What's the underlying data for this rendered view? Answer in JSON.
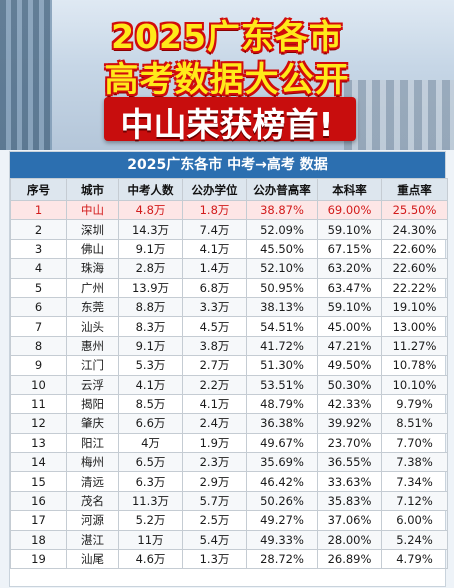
{
  "hero": {
    "title_line1": "2025广东各市",
    "title_line2": "高考数据大公开",
    "title_line3": "中山荣获榜首!"
  },
  "table": {
    "title": "2025广东各市 中考→高考 数据",
    "headers": [
      "序号",
      "城市",
      "中考人数",
      "公办学位",
      "公办普高率",
      "本科率",
      "重点率"
    ],
    "highlight_color": "#d21b1b",
    "header_color": "#2c6fb0",
    "rows": [
      [
        "1",
        "中山",
        "4.8万",
        "1.8万",
        "38.87%",
        "69.00%",
        "25.50%"
      ],
      [
        "2",
        "深圳",
        "14.3万",
        "7.4万",
        "52.09%",
        "59.10%",
        "24.30%"
      ],
      [
        "3",
        "佛山",
        "9.1万",
        "4.1万",
        "45.50%",
        "67.15%",
        "22.60%"
      ],
      [
        "4",
        "珠海",
        "2.8万",
        "1.4万",
        "52.10%",
        "63.20%",
        "22.60%"
      ],
      [
        "5",
        "广州",
        "13.9万",
        "6.8万",
        "50.95%",
        "63.47%",
        "22.22%"
      ],
      [
        "6",
        "东莞",
        "8.8万",
        "3.3万",
        "38.13%",
        "59.10%",
        "19.10%"
      ],
      [
        "7",
        "汕头",
        "8.3万",
        "4.5万",
        "54.51%",
        "45.00%",
        "13.00%"
      ],
      [
        "8",
        "惠州",
        "9.1万",
        "3.8万",
        "41.72%",
        "47.21%",
        "11.27%"
      ],
      [
        "9",
        "江门",
        "5.3万",
        "2.7万",
        "51.30%",
        "49.50%",
        "10.78%"
      ],
      [
        "10",
        "云浮",
        "4.1万",
        "2.2万",
        "53.51%",
        "50.30%",
        "10.10%"
      ],
      [
        "11",
        "揭阳",
        "8.5万",
        "4.1万",
        "48.79%",
        "42.33%",
        "9.79%"
      ],
      [
        "12",
        "肇庆",
        "6.6万",
        "2.4万",
        "36.38%",
        "39.92%",
        "8.51%"
      ],
      [
        "13",
        "阳江",
        "4万",
        "1.9万",
        "49.67%",
        "23.70%",
        "7.70%"
      ],
      [
        "14",
        "梅州",
        "6.5万",
        "2.3万",
        "35.69%",
        "36.55%",
        "7.38%"
      ],
      [
        "15",
        "清远",
        "6.3万",
        "2.9万",
        "46.42%",
        "33.63%",
        "7.34%"
      ],
      [
        "16",
        "茂名",
        "11.3万",
        "5.7万",
        "50.26%",
        "35.83%",
        "7.12%"
      ],
      [
        "17",
        "河源",
        "5.2万",
        "2.5万",
        "49.27%",
        "37.06%",
        "6.00%"
      ],
      [
        "18",
        "湛江",
        "11万",
        "5.4万",
        "49.33%",
        "28.00%",
        "5.24%"
      ],
      [
        "19",
        "汕尾",
        "4.6万",
        "1.3万",
        "28.72%",
        "26.89%",
        "4.79%"
      ]
    ]
  }
}
